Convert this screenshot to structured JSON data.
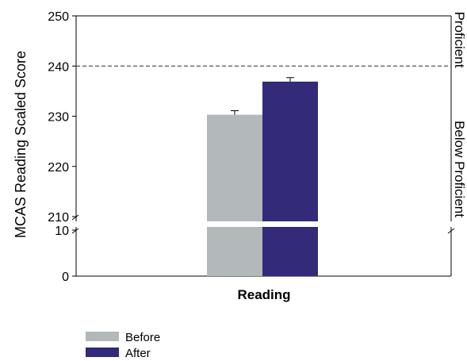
{
  "colors": {
    "before": "#B3B8BA",
    "after": "#332A79",
    "axis": "#000000",
    "threshold": "#555555"
  },
  "chart_data": {
    "type": "bar",
    "categories": [
      "Reading"
    ],
    "series": [
      {
        "name": "Before",
        "values": [
          230.3
        ],
        "error": [
          0.8
        ]
      },
      {
        "name": "After",
        "values": [
          236.9
        ],
        "error": [
          0.8
        ]
      }
    ],
    "ylabel": "MCAS Reading Scaled Score",
    "xlabel": "",
    "y_axis_break": {
      "lower_segment": {
        "ylim": [
          0,
          10
        ],
        "ticks": [
          "0",
          "10"
        ]
      },
      "upper_segment": {
        "ylim": [
          210,
          250
        ],
        "ticks": [
          "210",
          "220",
          "230",
          "240",
          "250"
        ]
      }
    },
    "threshold": {
      "value": 240,
      "style": "dashed"
    },
    "right_labels": {
      "upper": "Proficient",
      "lower": "Below Proficient"
    },
    "legend": {
      "position": "bottom-left",
      "entries": [
        "Before",
        "After"
      ]
    },
    "grid": false
  }
}
